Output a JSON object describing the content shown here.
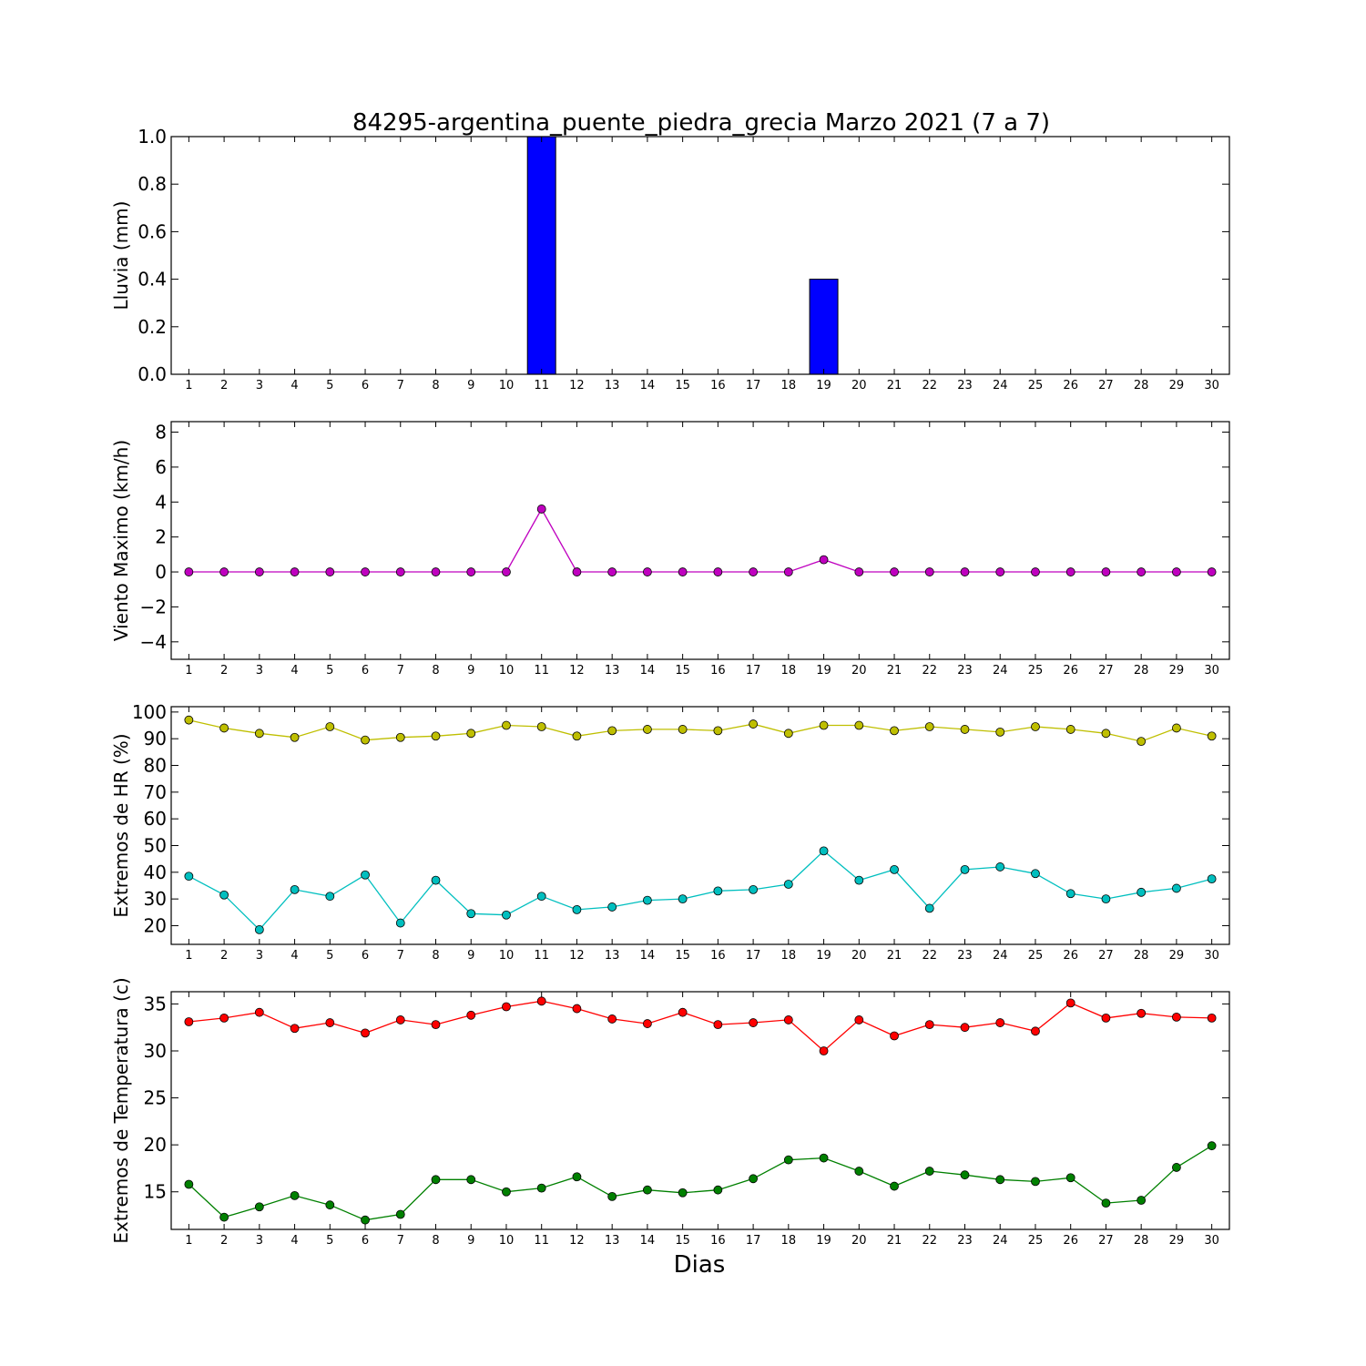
{
  "figure": {
    "title": "84295-argentina_puente_piedra_grecia Marzo 2021  (7 a 7)",
    "xlabel": "Dias"
  },
  "chart_data": [
    {
      "type": "bar",
      "ylabel": "Lluvia (mm)",
      "ylim": [
        0,
        1.0
      ],
      "yticks": [
        0.0,
        0.2,
        0.4,
        0.6,
        0.8,
        1.0
      ],
      "ytick_labels": [
        "0.0",
        "0.2",
        "0.4",
        "0.6",
        "0.8",
        "1.0"
      ],
      "grid": false,
      "series": [
        {
          "color": "#0000ff",
          "values": [
            0,
            0,
            0,
            0,
            0,
            0,
            0,
            0,
            0,
            0,
            1.0,
            0,
            0,
            0,
            0,
            0,
            0,
            0,
            0.4,
            0,
            0,
            0,
            0,
            0,
            0,
            0,
            0,
            0,
            0,
            0
          ]
        }
      ]
    },
    {
      "type": "line",
      "ylabel": "Viento Maximo (km/h)",
      "ylim": [
        -5,
        8.6
      ],
      "yticks": [
        -4,
        -2,
        0,
        2,
        4,
        6,
        8
      ],
      "ytick_labels": [
        "−4",
        "−2",
        "0",
        "2",
        "4",
        "6",
        "8"
      ],
      "grid": false,
      "series": [
        {
          "color": "#bf00bf",
          "values": [
            0,
            0,
            0,
            0,
            0,
            0,
            0,
            0,
            0,
            0,
            3.6,
            0,
            0,
            0,
            0,
            0,
            0,
            0,
            0.7,
            0,
            0,
            0,
            0,
            0,
            0,
            0,
            0,
            0,
            0,
            0
          ]
        }
      ]
    },
    {
      "type": "line",
      "ylabel": "Extremos de HR (%)",
      "ylim": [
        13,
        102
      ],
      "yticks": [
        20,
        30,
        40,
        50,
        60,
        70,
        80,
        90,
        100
      ],
      "ytick_labels": [
        "20",
        "30",
        "40",
        "50",
        "60",
        "70",
        "80",
        "90",
        "100"
      ],
      "grid": false,
      "series": [
        {
          "color": "#bfbf00",
          "values": [
            97,
            94,
            92,
            90.5,
            94.5,
            89.5,
            90.5,
            91,
            92,
            95,
            94.5,
            91,
            93,
            93.5,
            93.5,
            93,
            95.5,
            92,
            95,
            95,
            93,
            94.5,
            93.5,
            92.5,
            94.5,
            93.5,
            92,
            89,
            94,
            91
          ]
        },
        {
          "color": "#00bfbf",
          "values": [
            38.5,
            31.5,
            18.5,
            33.5,
            31,
            39,
            21,
            37,
            24.5,
            24,
            31,
            26,
            27,
            29.5,
            30,
            33,
            33.5,
            35.5,
            48,
            37,
            41,
            26.5,
            41,
            42,
            39.5,
            32,
            30,
            32.5,
            34,
            37.5
          ]
        }
      ]
    },
    {
      "type": "line",
      "ylabel": "Extremos de Temperatura (c)",
      "ylim": [
        11,
        36.3
      ],
      "yticks": [
        15,
        20,
        25,
        30,
        35
      ],
      "ytick_labels": [
        "15",
        "20",
        "25",
        "30",
        "35"
      ],
      "grid": false,
      "series": [
        {
          "color": "#ff0000",
          "values": [
            33.1,
            33.5,
            34.1,
            32.4,
            33,
            31.9,
            33.3,
            32.8,
            33.8,
            34.7,
            35.3,
            34.5,
            33.4,
            32.9,
            34.1,
            32.8,
            33,
            33.3,
            30,
            33.3,
            31.6,
            32.8,
            32.5,
            33,
            32.1,
            35.1,
            33.5,
            34,
            33.6,
            33.5
          ]
        },
        {
          "color": "#008000",
          "values": [
            15.8,
            12.3,
            13.4,
            14.6,
            13.6,
            12,
            12.6,
            16.3,
            16.3,
            15,
            15.4,
            16.6,
            14.5,
            15.2,
            14.9,
            15.2,
            16.4,
            18.4,
            18.6,
            17.2,
            15.6,
            17.2,
            16.8,
            16.3,
            16.1,
            16.5,
            13.8,
            14.1,
            17.6,
            19.9
          ]
        }
      ]
    }
  ],
  "x_categories": [
    "1",
    "2",
    "3",
    "4",
    "5",
    "6",
    "7",
    "8",
    "9",
    "10",
    "11",
    "12",
    "13",
    "14",
    "15",
    "16",
    "17",
    "18",
    "19",
    "20",
    "21",
    "22",
    "23",
    "24",
    "25",
    "26",
    "27",
    "28",
    "29",
    "30"
  ]
}
